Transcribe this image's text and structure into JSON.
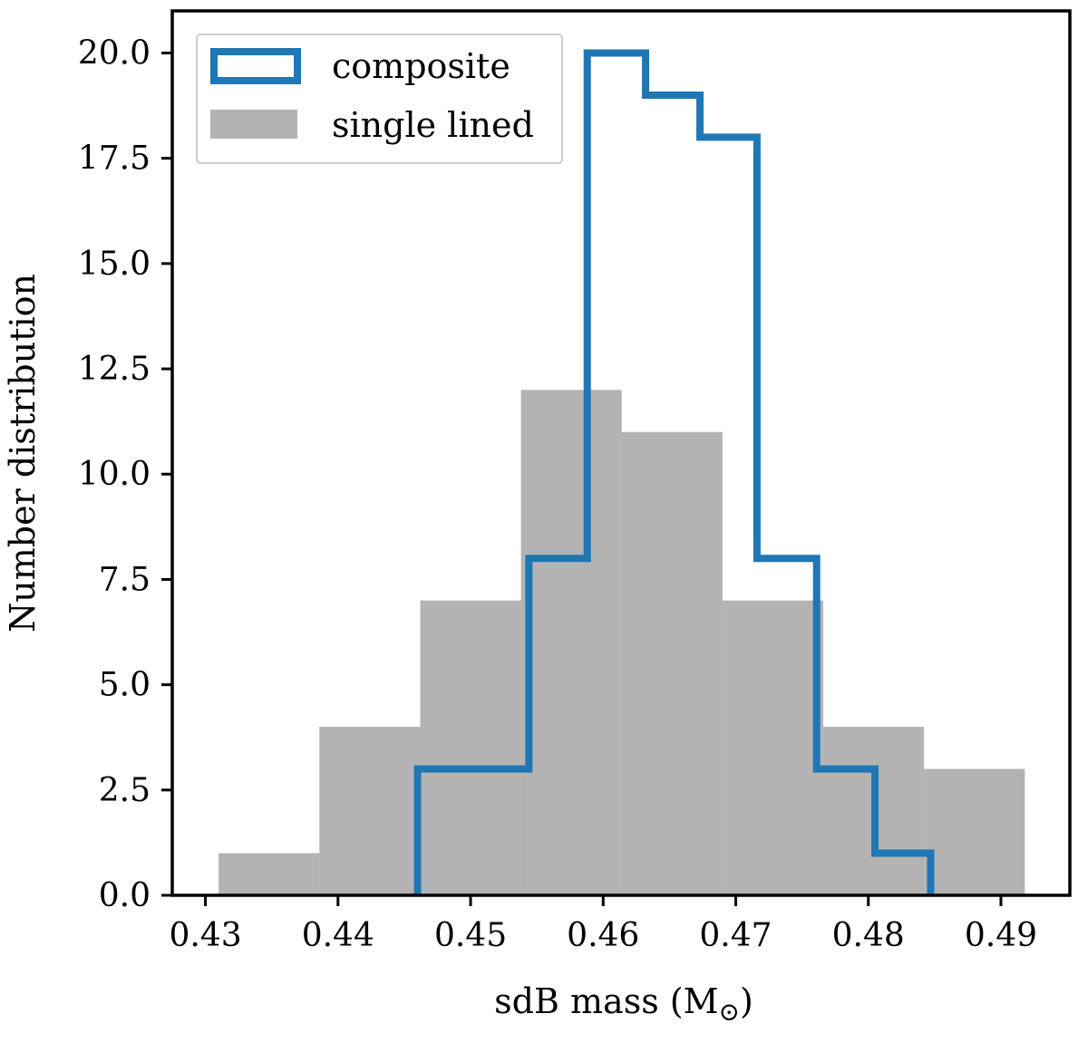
{
  "chart_data": {
    "type": "histogram",
    "xlabel": "sdB mass (M",
    "xlabel_subscript": "⊙",
    "xlabel_suffix": ")",
    "ylabel": "Number distribution",
    "xlim": [
      0.4275,
      0.4952
    ],
    "ylim": [
      0,
      21.0
    ],
    "xticks": [
      0.43,
      0.44,
      0.45,
      0.46,
      0.47,
      0.48,
      0.49
    ],
    "xtick_labels": [
      "0.43",
      "0.44",
      "0.45",
      "0.46",
      "0.47",
      "0.48",
      "0.49"
    ],
    "yticks": [
      0.0,
      2.5,
      5.0,
      7.5,
      10.0,
      12.5,
      15.0,
      17.5,
      20.0
    ],
    "ytick_labels": [
      "0.0",
      "2.5",
      "5.0",
      "7.5",
      "10.0",
      "12.5",
      "15.0",
      "17.5",
      "20.0"
    ],
    "grid": false,
    "legend_position": "top-left",
    "series": [
      {
        "name": "composite",
        "style": "step",
        "color": "#1f77b4",
        "bin_edges": [
          0.446,
          0.4544,
          0.4588,
          0.4632,
          0.4673,
          0.4716,
          0.4761,
          0.4805,
          0.4847
        ],
        "counts": [
          3,
          8,
          20,
          19,
          18,
          8,
          3,
          1
        ]
      },
      {
        "name": "single lined",
        "style": "filled",
        "color": "#808080",
        "opacity": 0.6,
        "bin_edges": [
          0.431,
          0.4386,
          0.4462,
          0.4538,
          0.4614,
          0.469,
          0.4766,
          0.4842,
          0.4918
        ],
        "counts": [
          1,
          4,
          7,
          12,
          11,
          7,
          4,
          3
        ]
      }
    ]
  }
}
